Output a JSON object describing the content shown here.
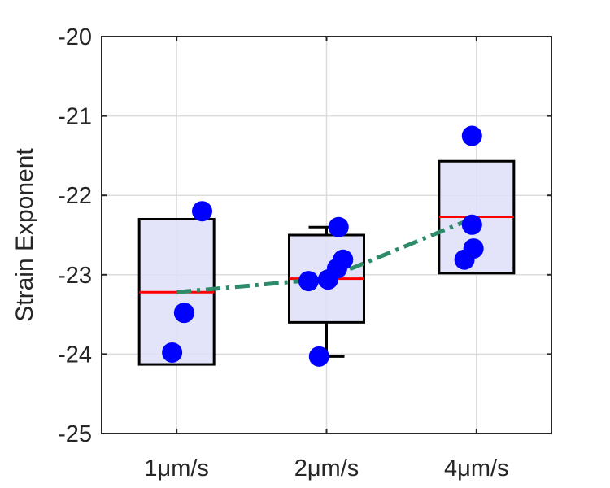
{
  "chart_data": {
    "type": "box",
    "title": "",
    "xlabel": "",
    "ylabel": "Strain Exponent",
    "ylim": [
      -25,
      -20
    ],
    "yticks": [
      -25,
      -24,
      -23,
      -22,
      -21,
      -20
    ],
    "ytick_labels": [
      "-25",
      "-24",
      "-23",
      "-22",
      "-21",
      "-20"
    ],
    "grid": true,
    "categories": [
      "1μm/s",
      "2μm/s",
      "4μm/s"
    ],
    "boxes": [
      {
        "q1": -24.13,
        "median": -23.22,
        "q3": -22.3,
        "whisker_low": null,
        "whisker_high": null
      },
      {
        "q1": -23.6,
        "median": -23.05,
        "q3": -22.5,
        "whisker_low": -24.03,
        "whisker_high": -22.4
      },
      {
        "q1": -22.98,
        "median": -22.27,
        "q3": -21.57,
        "whisker_low": null,
        "whisker_high": null
      }
    ],
    "points": [
      {
        "x": 1.17,
        "y": -22.2
      },
      {
        "x": 1.05,
        "y": -23.48
      },
      {
        "x": 0.97,
        "y": -23.98
      },
      {
        "x": 2.08,
        "y": -22.4
      },
      {
        "x": 2.11,
        "y": -22.81
      },
      {
        "x": 2.07,
        "y": -22.92
      },
      {
        "x": 2.01,
        "y": -23.06
      },
      {
        "x": 1.88,
        "y": -23.08
      },
      {
        "x": 1.95,
        "y": -24.03
      },
      {
        "x": 2.97,
        "y": -21.25
      },
      {
        "x": 2.97,
        "y": -22.37
      },
      {
        "x": 2.98,
        "y": -22.67
      },
      {
        "x": 2.92,
        "y": -22.81
      }
    ],
    "trend_line": {
      "x": [
        1,
        2,
        3
      ],
      "y": [
        -23.22,
        -23.05,
        -22.27
      ]
    },
    "colors": {
      "box_fill": "#dedff9",
      "box_edge": "#000000",
      "median": "#ff0000",
      "points": "#0000ff",
      "trend": "#2e8b6a",
      "grid": "#dcdcdc",
      "axis": "#262626"
    }
  }
}
